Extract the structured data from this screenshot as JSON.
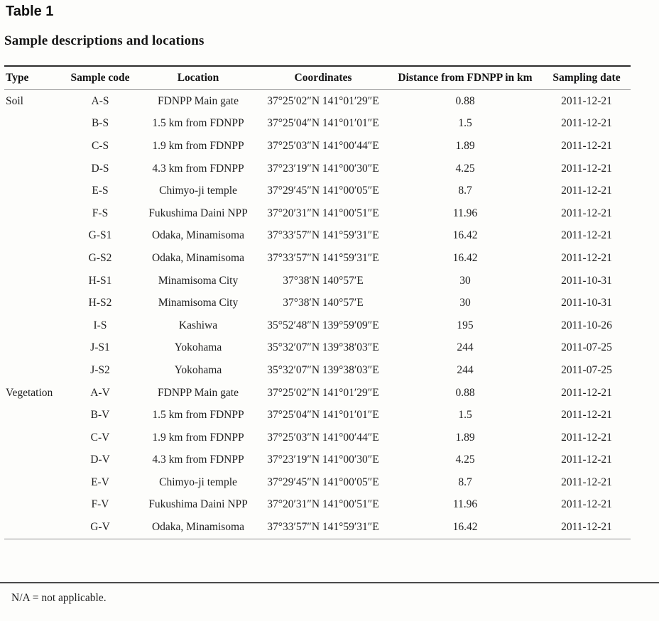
{
  "header": {
    "table_label": "Table 1",
    "caption": "Sample descriptions and locations"
  },
  "table": {
    "columns": [
      "Type",
      "Sample code",
      "Location",
      "Coordinates",
      "Distance from FDNPP in km",
      "Sampling date"
    ],
    "rows": [
      [
        "Soil",
        "A-S",
        "FDNPP Main gate",
        "37°25′02″N 141°01′29″E",
        "0.88",
        "2011-12-21"
      ],
      [
        "",
        "B-S",
        "1.5 km from FDNPP",
        "37°25′04″N 141°01′01″E",
        "1.5",
        "2011-12-21"
      ],
      [
        "",
        "C-S",
        "1.9 km from FDNPP",
        "37°25′03″N 141°00′44″E",
        "1.89",
        "2011-12-21"
      ],
      [
        "",
        "D-S",
        "4.3 km from FDNPP",
        "37°23′19″N 141°00′30″E",
        "4.25",
        "2011-12-21"
      ],
      [
        "",
        "E-S",
        "Chimyo-ji temple",
        "37°29′45″N 141°00′05″E",
        "8.7",
        "2011-12-21"
      ],
      [
        "",
        "F-S",
        "Fukushima Daini NPP",
        "37°20′31″N 141°00′51″E",
        "11.96",
        "2011-12-21"
      ],
      [
        "",
        "G-S1",
        "Odaka, Minamisoma",
        "37°33′57″N 141°59′31″E",
        "16.42",
        "2011-12-21"
      ],
      [
        "",
        "G-S2",
        "Odaka, Minamisoma",
        "37°33′57″N 141°59′31″E",
        "16.42",
        "2011-12-21"
      ],
      [
        "",
        "H-S1",
        "Minamisoma City",
        "37°38′N 140°57′E",
        "30",
        "2011-10-31"
      ],
      [
        "",
        "H-S2",
        "Minamisoma City",
        "37°38′N 140°57′E",
        "30",
        "2011-10-31"
      ],
      [
        "",
        "I-S",
        "Kashiwa",
        "35°52′48″N 139°59′09″E",
        "195",
        "2011-10-26"
      ],
      [
        "",
        "J-S1",
        "Yokohama",
        "35°32′07″N 139°38′03″E",
        "244",
        "2011-07-25"
      ],
      [
        "",
        "J-S2",
        "Yokohama",
        "35°32′07″N 139°38′03″E",
        "244",
        "2011-07-25"
      ],
      [
        "Vegetation",
        "A-V",
        "FDNPP Main gate",
        "37°25′02″N 141°01′29″E",
        "0.88",
        "2011-12-21"
      ],
      [
        "",
        "B-V",
        "1.5 km from FDNPP",
        "37°25′04″N 141°01′01″E",
        "1.5",
        "2011-12-21"
      ],
      [
        "",
        "C-V",
        "1.9 km from FDNPP",
        "37°25′03″N 141°00′44″E",
        "1.89",
        "2011-12-21"
      ],
      [
        "",
        "D-V",
        "4.3 km from FDNPP",
        "37°23′19″N 141°00′30″E",
        "4.25",
        "2011-12-21"
      ],
      [
        "",
        "E-V",
        "Chimyo-ji temple",
        "37°29′45″N 141°00′05″E",
        "8.7",
        "2011-12-21"
      ],
      [
        "",
        "F-V",
        "Fukushima Daini NPP",
        "37°20′31″N 141°00′51″E",
        "11.96",
        "2011-12-21"
      ],
      [
        "",
        "G-V",
        "Odaka, Minamisoma",
        "37°33′57″N 141°59′31″E",
        "16.42",
        "2011-12-21"
      ]
    ]
  },
  "footnote": "N/A = not applicable.",
  "colors": {
    "text": "#1f1f1f",
    "rule_dark": "#2c2c2c",
    "rule_light": "#8f8f8f",
    "separator": "#4a4a4a",
    "background": "#fdfdfb"
  }
}
